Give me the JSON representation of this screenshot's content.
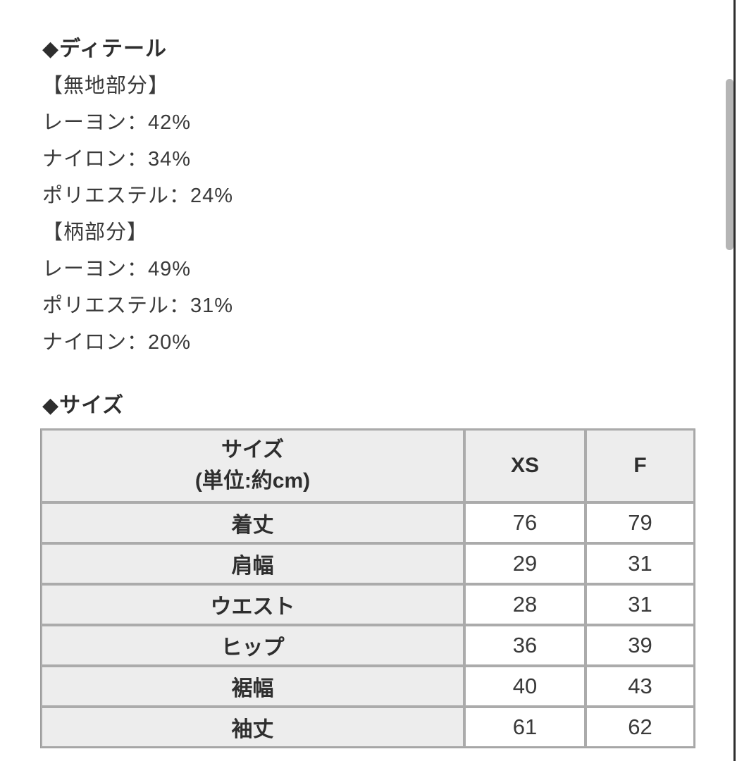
{
  "colors": {
    "text": "#3a3a3a",
    "heading_text": "#2e2e2e",
    "table_header_bg": "#ededed",
    "table_border": "#ababab",
    "scrollbar_thumb": "#b5b5b5",
    "right_edge_line": "#2e2e2e"
  },
  "detail_section": {
    "marker": "◆",
    "heading": "ディテール",
    "lines": [
      "【無地部分】",
      "レーヨン：42%",
      "ナイロン：34%",
      "ポリエステル：24%",
      "【柄部分】",
      "レーヨン：49%",
      "ポリエステル：31%",
      "ナイロン：20%"
    ]
  },
  "size_section": {
    "marker": "◆",
    "heading": "サイズ",
    "table": {
      "header": {
        "title_line1": "サイズ",
        "title_line2": "(単位:約cm)",
        "col_xs": "XS",
        "col_f": "F"
      },
      "rows": [
        {
          "label": "着丈",
          "xs": "76",
          "f": "79"
        },
        {
          "label": "肩幅",
          "xs": "29",
          "f": "31"
        },
        {
          "label": "ウエスト",
          "xs": "28",
          "f": "31"
        },
        {
          "label": "ヒップ",
          "xs": "36",
          "f": "39"
        },
        {
          "label": "裾幅",
          "xs": "40",
          "f": "43"
        },
        {
          "label": "袖丈",
          "xs": "61",
          "f": "62"
        }
      ]
    }
  }
}
